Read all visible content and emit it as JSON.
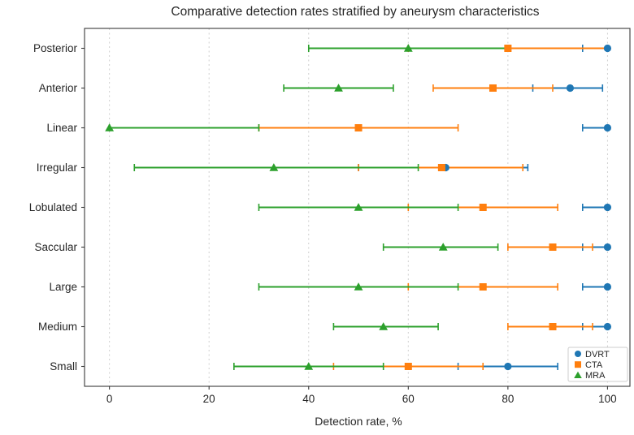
{
  "chart_data": {
    "type": "scatter",
    "subtype": "horizontal-errorbar",
    "title": "Comparative detection rates stratified by aneurysm characteristics",
    "xlabel": "Detection rate, %",
    "ylabel": "",
    "categories": [
      "Posterior",
      "Anterior",
      "Linear",
      "Irregular",
      "Lobulated",
      "Saccular",
      "Large",
      "Medium",
      "Small"
    ],
    "xticks": [
      0,
      20,
      40,
      60,
      80,
      100
    ],
    "xlim": [
      -5,
      104.5
    ],
    "grid": "vertical dashed light-gray",
    "legend_position": "lower right",
    "legend_labels": [
      "DVRT",
      "CTA",
      "MRA"
    ],
    "colors": {
      "grid": "#cfcfcf",
      "spine": "#3a3a3a",
      "text": "#262626",
      "legend_border": "#cccccc"
    },
    "series": [
      {
        "name": "DVRT",
        "color": "#1f77b4",
        "marker": "circle",
        "points": [
          {
            "category": "Posterior",
            "value": 100,
            "lo": 95,
            "hi": 100
          },
          {
            "category": "Anterior",
            "value": 92.5,
            "lo": 85,
            "hi": 99
          },
          {
            "category": "Linear",
            "value": 100,
            "lo": 95,
            "hi": 100
          },
          {
            "category": "Irregular",
            "value": 67.5,
            "lo": 50,
            "hi": 84
          },
          {
            "category": "Lobulated",
            "value": 100,
            "lo": 95,
            "hi": 100
          },
          {
            "category": "Saccular",
            "value": 100,
            "lo": 95,
            "hi": 100
          },
          {
            "category": "Large",
            "value": 100,
            "lo": 95,
            "hi": 100
          },
          {
            "category": "Medium",
            "value": 100,
            "lo": 95,
            "hi": 100
          },
          {
            "category": "Small",
            "value": 80,
            "lo": 70,
            "hi": 90
          }
        ]
      },
      {
        "name": "CTA",
        "color": "#ff7f0e",
        "marker": "square",
        "points": [
          {
            "category": "Posterior",
            "value": 80,
            "lo": 60,
            "hi": 100
          },
          {
            "category": "Anterior",
            "value": 77,
            "lo": 65,
            "hi": 89
          },
          {
            "category": "Linear",
            "value": 50,
            "lo": 30,
            "hi": 70
          },
          {
            "category": "Irregular",
            "value": 66.7,
            "lo": 50,
            "hi": 83
          },
          {
            "category": "Lobulated",
            "value": 75,
            "lo": 60,
            "hi": 90
          },
          {
            "category": "Saccular",
            "value": 89,
            "lo": 80,
            "hi": 97
          },
          {
            "category": "Large",
            "value": 75,
            "lo": 60,
            "hi": 90
          },
          {
            "category": "Medium",
            "value": 89,
            "lo": 80,
            "hi": 97
          },
          {
            "category": "Small",
            "value": 60,
            "lo": 45,
            "hi": 75
          }
        ]
      },
      {
        "name": "MRA",
        "color": "#2ca02c",
        "marker": "triangle",
        "points": [
          {
            "category": "Posterior",
            "value": 60,
            "lo": 40,
            "hi": 80
          },
          {
            "category": "Anterior",
            "value": 46,
            "lo": 35,
            "hi": 57
          },
          {
            "category": "Linear",
            "value": 0,
            "lo": 0,
            "hi": 30
          },
          {
            "category": "Irregular",
            "value": 33,
            "lo": 5,
            "hi": 62
          },
          {
            "category": "Lobulated",
            "value": 50,
            "lo": 30,
            "hi": 70
          },
          {
            "category": "Saccular",
            "value": 67,
            "lo": 55,
            "hi": 78
          },
          {
            "category": "Large",
            "value": 50,
            "lo": 30,
            "hi": 70
          },
          {
            "category": "Medium",
            "value": 55,
            "lo": 45,
            "hi": 66
          },
          {
            "category": "Small",
            "value": 40,
            "lo": 25,
            "hi": 55
          }
        ]
      }
    ]
  }
}
